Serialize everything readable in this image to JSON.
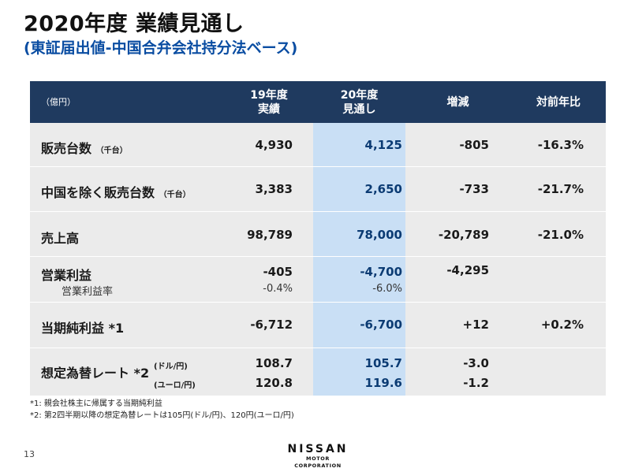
{
  "title": "2020年度 業績見通し",
  "subtitle": "(東証届出値-中国合弁会社持分法ベース)",
  "table": {
    "unit": "（億円）",
    "headers": {
      "fy19_line1": "19年度",
      "fy19_line2": "実績",
      "fy20_line1": "20年度",
      "fy20_line2": "見通し",
      "change": "増減",
      "yoy": "対前年比"
    },
    "rows": [
      {
        "label": "販売台数",
        "note": "（千台）",
        "fy19": "4,930",
        "fy20": "4,125",
        "change": "-805",
        "yoy": "-16.3%"
      },
      {
        "label": "中国を除く販売台数",
        "note": "（千台）",
        "fy19": "3,383",
        "fy20": "2,650",
        "change": "-733",
        "yoy": "-21.7%"
      },
      {
        "label": "売上高",
        "fy19": "98,789",
        "fy20": "78,000",
        "change": "-20,789",
        "yoy": "-21.0%"
      },
      {
        "label": "営業利益",
        "fy19": "-405",
        "fy20": "-4,700",
        "change": "-4,295",
        "sub_label": "営業利益率",
        "sub_fy19": "-0.4%",
        "sub_fy20": "-6.0%"
      },
      {
        "label": "当期純利益 *1",
        "fy19": "-6,712",
        "fy20": "-6,700",
        "change": "+12",
        "yoy": "+0.2%"
      },
      {
        "label": "想定為替レート *2",
        "fx1_label": "(ドル/円)",
        "fx1_fy19": "108.7",
        "fx1_fy20": "105.7",
        "fx1_change": "-3.0",
        "fx2_label": "(ユーロ/円)",
        "fx2_fy19": "120.8",
        "fx2_fy20": "119.6",
        "fx2_change": "-1.2"
      }
    ]
  },
  "notes": [
    "*1: 親会社株主に帰属する当期純利益",
    "*2: 第2四半期以降の想定為替レートは105円(ドル/円)、120円(ユーロ/円)"
  ],
  "page_number": "13",
  "logo": {
    "line1": "NISSAN",
    "line2": "MOTOR CORPORATION"
  },
  "colors": {
    "header_bg": "#1f3a5f",
    "row_bg": "#ebebeb",
    "highlight_col": "#c9dff5",
    "title_blue": "#0a4da2"
  }
}
